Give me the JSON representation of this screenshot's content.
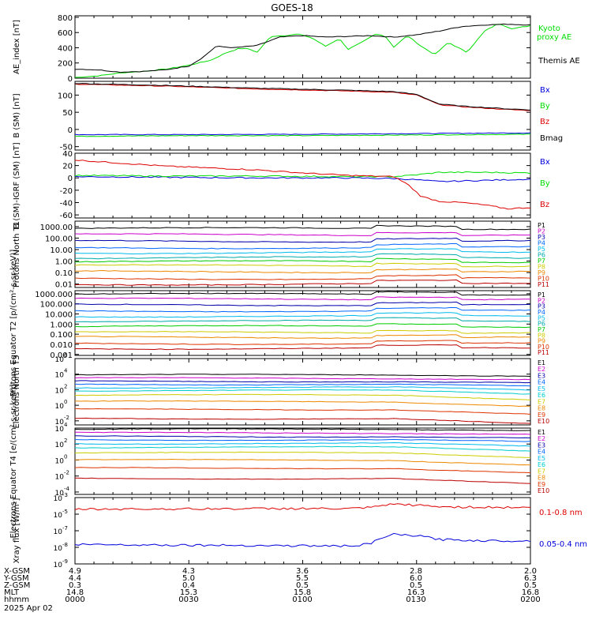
{
  "title": "GOES-18",
  "colors": {
    "black": "#000000",
    "green": "#00dd00",
    "blue": "#0000dd",
    "red": "#dd0000",
    "magenta": "#cc00cc",
    "navy": "#0000aa",
    "cyan": "#00bbee",
    "teal": "#00aaaa",
    "lime": "#00cc00",
    "yellow": "#cccc00",
    "orange": "#ee8800",
    "darkred": "#bb0000"
  },
  "chart_data": [
    {
      "id": "ae",
      "type": "line",
      "ylabel": "AE_index [nT]",
      "yticks": [
        "800",
        "600",
        "400",
        "200",
        "0"
      ],
      "ylim": [
        0,
        820
      ],
      "series": [
        {
          "name": "Kyoto proxy AE",
          "color": "#00dd00",
          "x": [
            0,
            0.05,
            0.1,
            0.15,
            0.2,
            0.25,
            0.3,
            0.33,
            0.36,
            0.38,
            0.4,
            0.43,
            0.46,
            0.49,
            0.52,
            0.55,
            0.58,
            0.6,
            0.63,
            0.66,
            0.68,
            0.7,
            0.73,
            0.76,
            0.79,
            0.82,
            0.86,
            0.9,
            0.93,
            0.96,
            1.0
          ],
          "y": [
            10,
            30,
            70,
            90,
            120,
            170,
            240,
            330,
            390,
            390,
            340,
            550,
            560,
            580,
            530,
            420,
            520,
            380,
            470,
            580,
            560,
            410,
            560,
            420,
            310,
            470,
            340,
            620,
            720,
            650,
            690
          ]
        },
        {
          "name": "Themis AE",
          "color": "#000000",
          "x": [
            0,
            0.05,
            0.1,
            0.15,
            0.2,
            0.25,
            0.28,
            0.31,
            0.35,
            0.4,
            0.45,
            0.5,
            0.55,
            0.6,
            0.65,
            0.7,
            0.75,
            0.8,
            0.85,
            0.9,
            0.95,
            1.0
          ],
          "y": [
            120,
            110,
            80,
            90,
            110,
            160,
            270,
            420,
            400,
            430,
            540,
            560,
            540,
            550,
            560,
            540,
            570,
            620,
            680,
            700,
            710,
            700
          ]
        }
      ],
      "legend": [
        "Kyoto",
        "proxy AE",
        "Themis AE"
      ]
    },
    {
      "id": "bsm",
      "type": "line",
      "ylabel": "B (SM) [nT]",
      "yticks": [
        "100",
        "50",
        "0",
        "-50"
      ],
      "ylim": [
        -60,
        140
      ],
      "series": [
        {
          "name": "Bx",
          "color": "#0000dd",
          "x": [
            0,
            0.25,
            0.5,
            0.75,
            1.0
          ],
          "y": [
            -15,
            -15,
            -14,
            -12,
            -10
          ]
        },
        {
          "name": "By",
          "color": "#00dd00",
          "x": [
            0,
            0.25,
            0.5,
            0.75,
            1.0
          ],
          "y": [
            -20,
            -18,
            -18,
            -16,
            -14
          ]
        },
        {
          "name": "Bz",
          "color": "#dd0000",
          "x": [
            0,
            0.2,
            0.4,
            0.6,
            0.7,
            0.75,
            0.8,
            0.85,
            0.9,
            0.95,
            1.0
          ],
          "y": [
            132,
            126,
            118,
            112,
            108,
            100,
            72,
            66,
            62,
            58,
            55
          ]
        },
        {
          "name": "Bmag",
          "color": "#000000",
          "x": [
            0,
            0.2,
            0.4,
            0.6,
            0.7,
            0.75,
            0.8,
            0.85,
            0.9,
            0.95,
            1.0
          ],
          "y": [
            134,
            128,
            120,
            114,
            110,
            102,
            74,
            68,
            64,
            60,
            57
          ]
        }
      ],
      "legend": [
        "Bx",
        "By",
        "Bz",
        "Bmag"
      ]
    },
    {
      "id": "bigrf",
      "type": "line",
      "ylabel": "B (SM)-IGRF (SM) [nT]",
      "yticks": [
        "40",
        "20",
        "0",
        "-20",
        "-40",
        "-60"
      ],
      "ylim": [
        -65,
        40
      ],
      "series": [
        {
          "name": "Bx",
          "color": "#0000dd",
          "x": [
            0,
            0.2,
            0.4,
            0.6,
            0.7,
            0.75,
            0.8,
            1.0
          ],
          "y": [
            2,
            1,
            0,
            0,
            -1,
            -3,
            -6,
            -2
          ]
        },
        {
          "name": "By",
          "color": "#00dd00",
          "x": [
            0,
            0.2,
            0.4,
            0.6,
            0.7,
            0.75,
            0.8,
            0.9,
            1.0
          ],
          "y": [
            4,
            3,
            3,
            2,
            2,
            5,
            9,
            9,
            8
          ]
        },
        {
          "name": "Bz",
          "color": "#dd0000",
          "x": [
            0,
            0.1,
            0.2,
            0.3,
            0.4,
            0.5,
            0.6,
            0.7,
            0.73,
            0.76,
            0.8,
            0.85,
            0.9,
            0.95,
            1.0
          ],
          "y": [
            29,
            24,
            19,
            16,
            13,
            8,
            4,
            2,
            -10,
            -30,
            -38,
            -40,
            -44,
            -50,
            -48
          ]
        }
      ],
      "legend": [
        "Bx",
        "By",
        "Bz"
      ]
    },
    {
      "id": "pn",
      "type": "line",
      "ylabel": "Protons North T1",
      "yticks": [
        "1000.00",
        "100.00",
        "10.00",
        "1.00",
        "0.10",
        "0.01"
      ],
      "legend": [
        "P1",
        "P2",
        "P3",
        "P4",
        "P5",
        "P6",
        "P7",
        "P8",
        "P9",
        "P10",
        "P11"
      ],
      "levels": [
        700,
        200,
        55,
        15,
        5.5,
        2,
        0.9,
        0.4,
        0.12,
        0.03,
        0.01
      ],
      "log_range": [
        0.005,
        3000
      ]
    },
    {
      "id": "pe",
      "type": "line",
      "ylabel": "Protons Equator T2 [p/(cm²-s-sr-keV)]",
      "yticks": [
        "1000.000",
        "100.000",
        "10.000",
        "1.000",
        "0.100",
        "0.010",
        "0.001"
      ],
      "legend": [
        "P1",
        "P2",
        "P3",
        "P4",
        "P5",
        "P6",
        "P7",
        "P8",
        "P9",
        "P10",
        "P11"
      ],
      "levels": [
        900,
        300,
        80,
        20,
        6,
        2,
        0.6,
        0.15,
        0.05,
        0.012,
        0.004
      ],
      "log_range": [
        0.0008,
        2000
      ]
    },
    {
      "id": "en",
      "type": "line",
      "ylabel": "Electrons North T3",
      "ytick_powers": [
        "6",
        "4",
        "2",
        "0",
        "-2"
      ],
      "legend": [
        "E1",
        "E2",
        "E3",
        "E4",
        "E5",
        "E6",
        "E7",
        "E8",
        "E9",
        "E10"
      ],
      "levels": [
        8000,
        3000,
        1200,
        500,
        200,
        80,
        20,
        3,
        0.3,
        0.02
      ],
      "log_range": [
        0.003,
        1000000
      ]
    },
    {
      "id": "ee",
      "type": "line",
      "ylabel": "Electrons Equator T4 [e/(cm²-s-sr-keV)]",
      "ytick_powers": [
        "4",
        "2",
        "0",
        "-2",
        "-4"
      ],
      "legend": [
        "E1",
        "E2",
        "E3",
        "E4",
        "E5",
        "E6",
        "E7",
        "E8",
        "E9",
        "E10"
      ],
      "levels": [
        7000,
        2500,
        900,
        350,
        120,
        40,
        8,
        1,
        0.1,
        0.005
      ],
      "log_range": [
        5e-05,
        10000
      ]
    },
    {
      "id": "xr",
      "type": "line",
      "ylabel": "Xray flux [W/m²]",
      "ytick_powers": [
        "-3",
        "-5",
        "-7",
        "-8",
        "-9"
      ],
      "series": [
        {
          "name": "0.1-0.8 nm",
          "color": "#dd0000",
          "x": [
            0,
            0.5,
            0.6,
            0.65,
            0.7,
            0.75,
            0.8,
            1.0
          ],
          "y": [
            2e-06,
            2.2e-06,
            2.1e-06,
            2.5e-06,
            4e-06,
            3.5e-06,
            2.8e-06,
            2.5e-06
          ]
        },
        {
          "name": "0.05-0.4 nm",
          "color": "#0000dd",
          "x": [
            0,
            0.2,
            0.4,
            0.6,
            0.65,
            0.7,
            0.75,
            0.8,
            0.9,
            1.0
          ],
          "y": [
            1.5e-08,
            1.4e-08,
            1.3e-08,
            1.2e-08,
            1.6e-08,
            6e-08,
            5e-08,
            3e-08,
            2.5e-08,
            2.5e-08
          ]
        }
      ],
      "legend": [
        "0.1-0.8 nm",
        "0.05-0.4 nm"
      ]
    }
  ],
  "xaxis": {
    "rows": [
      {
        "label": "X-GSM",
        "values": [
          "4.9",
          "4.3",
          "3.6",
          "2.8",
          "2.0"
        ]
      },
      {
        "label": "Y-GSM",
        "values": [
          "4.4",
          "5.0",
          "5.5",
          "6.0",
          "6.3"
        ]
      },
      {
        "label": "Z-GSM",
        "values": [
          "0.3",
          "0.4",
          "0.5",
          "0.5",
          "0.5"
        ]
      },
      {
        "label": "MLT",
        "values": [
          "14.8",
          "15.3",
          "15.8",
          "16.3",
          "16.8"
        ]
      },
      {
        "label": "hhmm",
        "values": [
          "0000",
          "0030",
          "0100",
          "0130",
          "0200"
        ]
      }
    ],
    "date": "2025 Apr 02"
  }
}
